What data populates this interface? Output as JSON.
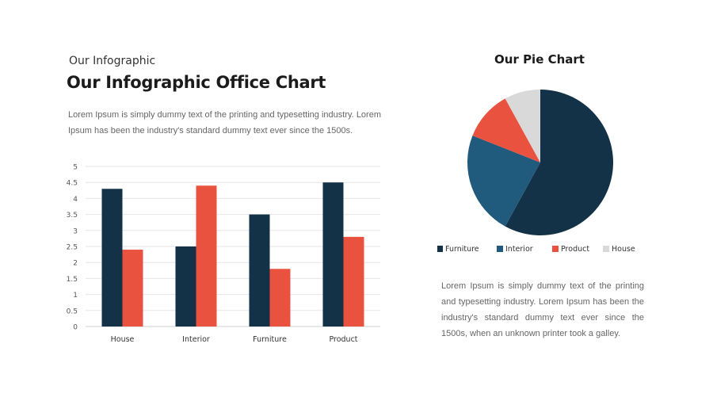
{
  "header": {
    "subtitle": "Our Infographic",
    "title": "Our Infographic Office Chart",
    "description": "Lorem Ipsum is simply dummy text of the printing and typesetting industry. Lorem Ipsum has been the industry's standard dummy text ever since the 1500s."
  },
  "pie_section": {
    "title": "Our Pie Chart",
    "description": "Lorem Ipsum is simply dummy text of the printing and typesetting industry.  Lorem Ipsum has been the industry's standard dummy text ever since the 1500s,  when an unknown printer took a galley."
  },
  "colors": {
    "navy": "#133247",
    "red": "#e8523f",
    "blue": "#205a7c",
    "gray": "#d9d9d9"
  },
  "chart_data": [
    {
      "type": "bar",
      "categories": [
        "House",
        "Interior",
        "Furniture",
        "Product"
      ],
      "series": [
        {
          "color": "#133247",
          "values": [
            4.3,
            2.5,
            3.5,
            4.5
          ]
        },
        {
          "color": "#e8523f",
          "values": [
            2.4,
            4.4,
            1.8,
            2.8
          ]
        }
      ],
      "ylim": [
        0,
        5
      ],
      "yticks": [
        "0",
        "0.5",
        "1",
        "1.5",
        "2",
        "2.5",
        "3",
        "3.5",
        "4",
        "4.5",
        "5"
      ],
      "grid": true
    },
    {
      "type": "pie",
      "labels": [
        "Furniture",
        "Interior",
        "Product",
        "House"
      ],
      "values": [
        58,
        23,
        11,
        8
      ],
      "colors": [
        "#133247",
        "#205a7c",
        "#e8523f",
        "#d9d9d9"
      ],
      "legend": "bottom"
    }
  ]
}
